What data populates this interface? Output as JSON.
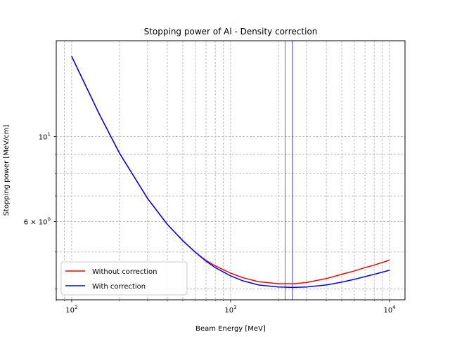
{
  "chart_data": {
    "type": "line",
    "title": "Stopping power of Al - Density correction",
    "xlabel": "Beam Energy [MeV]",
    "ylabel": "Stopping power [MeV/cm]",
    "xscale": "log",
    "yscale": "log",
    "xlim": [
      80,
      12500
    ],
    "ylim": [
      3.75,
      17.8
    ],
    "grid": "major and minor, dashed",
    "legend_loc": "lower left",
    "x_ticks": [
      {
        "value": 100,
        "base": "10",
        "exp": "2"
      },
      {
        "value": 1000,
        "base": "10",
        "exp": "3"
      },
      {
        "value": 10000,
        "base": "10",
        "exp": "4"
      }
    ],
    "y_ticks": [
      {
        "value": 10,
        "base": "10",
        "exp": "1",
        "prefix": ""
      },
      {
        "value": 6,
        "base": "10",
        "exp": "0",
        "prefix": "6 × "
      }
    ],
    "x": [
      100,
      150,
      200,
      300,
      400,
      500,
      600,
      700,
      800,
      1000,
      1200,
      1500,
      2000,
      2500,
      3000,
      4000,
      5000,
      6000,
      7000,
      8000,
      10000
    ],
    "series": [
      {
        "name": "Without correction",
        "color": "#ff0000",
        "values": [
          16.2,
          11.4,
          9.05,
          6.9,
          5.9,
          5.35,
          4.99,
          4.75,
          4.6,
          4.4,
          4.28,
          4.18,
          4.13,
          4.13,
          4.16,
          4.26,
          4.37,
          4.46,
          4.55,
          4.62,
          4.76
        ]
      },
      {
        "name": "With correction",
        "color": "#0000ff",
        "values": [
          16.2,
          11.4,
          9.05,
          6.9,
          5.9,
          5.35,
          4.99,
          4.73,
          4.55,
          4.33,
          4.2,
          4.1,
          4.05,
          4.04,
          4.05,
          4.1,
          4.17,
          4.24,
          4.31,
          4.37,
          4.48
        ]
      }
    ],
    "vlines": [
      {
        "x": 2200,
        "color": "#ff0000"
      },
      {
        "x": 2450,
        "color": "#0000ff"
      }
    ]
  }
}
